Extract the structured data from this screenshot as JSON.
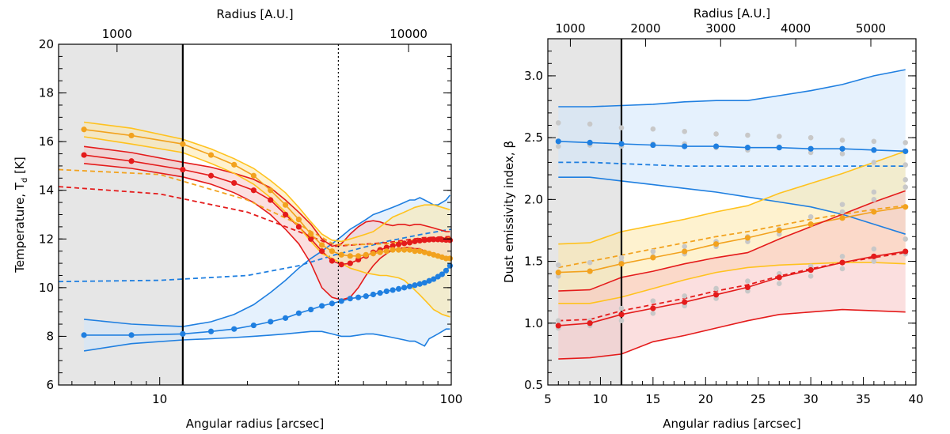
{
  "colors": {
    "blue": "#1f7fe0",
    "blue_fill": "#cfe6fb",
    "red": "#e41b1b",
    "red_fill": "#f8c4c4",
    "orange": "#f2a21e",
    "orange_band": "#ffc21e",
    "orange_fill": "#fde7a8",
    "gray_region": "#e6e6e6",
    "gray_point": "#c8c8c8"
  },
  "chart_data": [
    {
      "type": "line",
      "xscale": "log",
      "xlim": [
        4.5,
        100
      ],
      "ylim": [
        6,
        20
      ],
      "xlabel": "Angular radius [arcsec]",
      "ylabel": "Temperature, T",
      "ylabel_sub": "d",
      "ylabel_unit": " [K]",
      "top_axis_label": "Radius [A.U.]",
      "x_ticks": [
        10,
        100
      ],
      "x_tick_labels": [
        "10",
        "100"
      ],
      "y_ticks": [
        6,
        8,
        10,
        12,
        14,
        16,
        18,
        20
      ],
      "y_tick_labels": [
        "6",
        "8",
        "10",
        "12",
        "14",
        "16",
        "18",
        "20"
      ],
      "top_ticks": [
        7.14,
        71.4
      ],
      "top_tick_labels": [
        "1000",
        "10000"
      ],
      "shaded_region_x": [
        4.5,
        12
      ],
      "vline_solid_x": 12,
      "vline_dotted_x": 41,
      "series": [
        {
          "name": "blue",
          "color_key": "blue",
          "x": [
            5.5,
            8,
            12,
            15,
            18,
            21,
            24,
            27,
            30,
            33,
            36,
            39,
            42,
            45,
            48,
            51,
            54,
            57,
            60,
            63,
            66,
            69,
            72,
            75,
            78,
            81,
            84,
            87,
            90,
            93,
            96,
            99
          ],
          "y": [
            8.05,
            8.05,
            8.1,
            8.2,
            8.3,
            8.45,
            8.6,
            8.75,
            8.95,
            9.1,
            9.25,
            9.35,
            9.45,
            9.55,
            9.6,
            9.65,
            9.72,
            9.78,
            9.85,
            9.9,
            9.95,
            10.0,
            10.05,
            10.1,
            10.15,
            10.2,
            10.28,
            10.35,
            10.45,
            10.55,
            10.7,
            10.9
          ],
          "band_upper": [
            8.7,
            8.5,
            8.4,
            8.6,
            8.9,
            9.3,
            9.8,
            10.3,
            10.8,
            11.2,
            11.5,
            11.8,
            12.1,
            12.4,
            12.6,
            12.8,
            13.0,
            13.1,
            13.2,
            13.3,
            13.4,
            13.5,
            13.6,
            13.6,
            13.7,
            13.6,
            13.5,
            13.4,
            13.4,
            13.5,
            13.6,
            13.8
          ],
          "band_lower": [
            7.4,
            7.7,
            7.85,
            7.9,
            7.95,
            8.0,
            8.05,
            8.1,
            8.15,
            8.2,
            8.2,
            8.1,
            8.0,
            8.0,
            8.05,
            8.1,
            8.1,
            8.05,
            8.0,
            7.95,
            7.9,
            7.85,
            7.8,
            7.8,
            7.7,
            7.6,
            7.9,
            8.0,
            8.1,
            8.2,
            8.3,
            8.3
          ],
          "dashed_x": [
            4.5,
            10,
            20,
            30,
            40,
            60,
            80,
            100
          ],
          "dashed_y": [
            10.25,
            10.3,
            10.5,
            10.9,
            11.35,
            11.9,
            12.2,
            12.4
          ]
        },
        {
          "name": "red",
          "color_key": "red",
          "x": [
            5.5,
            8,
            12,
            15,
            18,
            21,
            24,
            27,
            30,
            33,
            36,
            39,
            42,
            45,
            48,
            51,
            54,
            57,
            60,
            63,
            66,
            69,
            72,
            75,
            78,
            81,
            84,
            87,
            90,
            93,
            96,
            99
          ],
          "y": [
            15.45,
            15.2,
            14.85,
            14.6,
            14.3,
            14.0,
            13.6,
            13.0,
            12.5,
            12.0,
            11.5,
            11.1,
            10.95,
            11.0,
            11.15,
            11.3,
            11.45,
            11.55,
            11.65,
            11.72,
            11.78,
            11.82,
            11.85,
            11.9,
            11.93,
            11.95,
            11.97,
            11.98,
            11.98,
            11.97,
            11.96,
            11.95
          ],
          "band_upper": [
            15.8,
            15.55,
            15.15,
            14.95,
            14.7,
            14.45,
            14.1,
            13.6,
            13.1,
            12.6,
            12.0,
            11.7,
            11.8,
            12.2,
            12.5,
            12.7,
            12.75,
            12.7,
            12.6,
            12.55,
            12.6,
            12.6,
            12.55,
            12.6,
            12.6,
            12.55,
            12.5,
            12.45,
            12.4,
            12.35,
            12.3,
            12.3
          ],
          "band_lower": [
            15.1,
            14.9,
            14.55,
            14.25,
            13.9,
            13.5,
            13.0,
            12.4,
            11.8,
            11.0,
            10.0,
            9.6,
            9.5,
            9.6,
            10.0,
            10.5,
            10.9,
            11.2,
            11.4,
            11.55,
            11.6,
            11.65,
            11.65,
            11.6,
            11.6,
            11.5,
            11.45,
            11.4,
            11.35,
            11.3,
            11.25,
            11.2
          ],
          "dashed_x": [
            4.5,
            10,
            20,
            30,
            40,
            60,
            80,
            100
          ],
          "dashed_y": [
            14.15,
            13.85,
            13.1,
            12.3,
            11.7,
            11.85,
            12.05,
            12.1
          ]
        },
        {
          "name": "orange",
          "color_key": "orange",
          "x": [
            5.5,
            8,
            12,
            15,
            18,
            21,
            24,
            27,
            30,
            33,
            36,
            39,
            42,
            45,
            48,
            51,
            54,
            57,
            60,
            63,
            66,
            69,
            72,
            75,
            78,
            81,
            84,
            87,
            90,
            93,
            96,
            99
          ],
          "y": [
            16.5,
            16.25,
            15.9,
            15.45,
            15.05,
            14.6,
            14.0,
            13.4,
            12.8,
            12.2,
            11.75,
            11.5,
            11.35,
            11.3,
            11.3,
            11.35,
            11.4,
            11.45,
            11.5,
            11.55,
            11.55,
            11.55,
            11.55,
            11.5,
            11.5,
            11.45,
            11.4,
            11.35,
            11.3,
            11.25,
            11.2,
            11.2
          ],
          "band_upper": [
            16.8,
            16.55,
            16.1,
            15.7,
            15.3,
            14.9,
            14.4,
            13.9,
            13.3,
            12.7,
            12.2,
            11.95,
            11.9,
            12.0,
            12.1,
            12.2,
            12.3,
            12.5,
            12.7,
            12.9,
            13.0,
            13.1,
            13.2,
            13.3,
            13.35,
            13.4,
            13.4,
            13.4,
            13.35,
            13.3,
            13.25,
            13.2
          ],
          "band_lower": [
            16.2,
            15.9,
            15.55,
            15.1,
            14.7,
            14.25,
            13.7,
            13.1,
            12.5,
            11.9,
            11.4,
            11.2,
            11.0,
            10.8,
            10.7,
            10.6,
            10.55,
            10.5,
            10.5,
            10.45,
            10.4,
            10.3,
            10.1,
            9.9,
            9.7,
            9.5,
            9.3,
            9.1,
            9.0,
            8.9,
            8.85,
            8.8
          ],
          "dashed_x": [
            4.5,
            10,
            20,
            30,
            40,
            60,
            80,
            100
          ],
          "dashed_y": [
            14.85,
            14.65,
            13.6,
            12.6,
            11.75,
            11.8,
            12.0,
            12.05
          ]
        }
      ]
    },
    {
      "type": "line",
      "xscale": "linear",
      "xlim": [
        5,
        40
      ],
      "ylim": [
        0.5,
        3.3
      ],
      "xlabel": "Angular radius [arcsec]",
      "ylabel": "Dust emissivity index, β",
      "top_axis_label": "Radius [A.U.]",
      "x_ticks": [
        5,
        10,
        15,
        20,
        25,
        30,
        35,
        40
      ],
      "x_tick_labels": [
        "5",
        "10",
        "15",
        "20",
        "25",
        "30",
        "35",
        "40"
      ],
      "y_ticks": [
        0.5,
        1.0,
        1.5,
        2.0,
        2.5,
        3.0
      ],
      "y_tick_labels": [
        "0.5",
        "1.0",
        "1.5",
        "2.0",
        "2.5",
        "3.0"
      ],
      "top_ticks": [
        7.14,
        14.29,
        21.43,
        28.57,
        35.71
      ],
      "top_tick_labels": [
        "1000",
        "2000",
        "3000",
        "4000",
        "5000"
      ],
      "shaded_region_x": [
        5,
        12
      ],
      "vline_solid_x": 12,
      "gray_points": {
        "x": [
          6,
          9,
          12,
          15,
          18,
          21,
          24,
          27,
          30,
          33,
          36,
          39
        ],
        "y_sets": [
          [
            2.62,
            2.61,
            2.58,
            2.57,
            2.55,
            2.53,
            2.52,
            2.51,
            2.5,
            2.48,
            2.47,
            2.46
          ],
          [
            2.43,
            2.44,
            2.43,
            2.45,
            2.45,
            2.42,
            2.4,
            2.42,
            2.38,
            2.37,
            2.3,
            2.28
          ],
          [
            1.47,
            1.49,
            1.53,
            1.58,
            1.62,
            1.66,
            1.7,
            1.76,
            1.86,
            1.96,
            2.06,
            2.16
          ],
          [
            1.38,
            1.42,
            1.5,
            1.54,
            1.56,
            1.62,
            1.66,
            1.72,
            1.8,
            1.9,
            2.0,
            2.1
          ],
          [
            1.02,
            1.02,
            1.12,
            1.18,
            1.22,
            1.28,
            1.34,
            1.4,
            1.46,
            1.54,
            1.6,
            1.68
          ],
          [
            0.96,
            0.98,
            1.02,
            1.08,
            1.14,
            1.2,
            1.26,
            1.32,
            1.38,
            1.44,
            1.5,
            1.56
          ]
        ]
      },
      "series": [
        {
          "name": "blue",
          "color_key": "blue",
          "x": [
            6,
            9,
            12,
            15,
            18,
            21,
            24,
            27,
            30,
            33,
            36,
            39
          ],
          "y": [
            2.47,
            2.46,
            2.45,
            2.44,
            2.43,
            2.43,
            2.42,
            2.42,
            2.41,
            2.41,
            2.4,
            2.39
          ],
          "band_upper": [
            2.75,
            2.75,
            2.76,
            2.77,
            2.79,
            2.8,
            2.8,
            2.84,
            2.88,
            2.93,
            3.0,
            3.05
          ],
          "band_lower": [
            2.18,
            2.18,
            2.15,
            2.12,
            2.09,
            2.06,
            2.02,
            1.98,
            1.94,
            1.88,
            1.8,
            1.72
          ],
          "dashed_x": [
            6,
            9,
            12,
            15,
            18,
            21,
            24,
            27,
            30,
            33,
            36,
            39
          ],
          "dashed_y": [
            2.3,
            2.3,
            2.29,
            2.28,
            2.27,
            2.27,
            2.27,
            2.27,
            2.27,
            2.27,
            2.27,
            2.27
          ]
        },
        {
          "name": "orange",
          "color_key": "orange",
          "x": [
            6,
            9,
            12,
            15,
            18,
            21,
            24,
            27,
            30,
            33,
            36,
            39
          ],
          "y": [
            1.41,
            1.42,
            1.48,
            1.53,
            1.58,
            1.64,
            1.69,
            1.75,
            1.8,
            1.85,
            1.9,
            1.94
          ],
          "band_upper": [
            1.64,
            1.65,
            1.74,
            1.79,
            1.84,
            1.9,
            1.95,
            2.05,
            2.13,
            2.21,
            2.3,
            2.39
          ],
          "band_lower": [
            1.16,
            1.16,
            1.21,
            1.28,
            1.35,
            1.41,
            1.45,
            1.47,
            1.48,
            1.49,
            1.49,
            1.48
          ],
          "dashed_x": [
            6,
            9,
            12,
            15,
            18,
            21,
            24,
            27,
            30,
            33,
            36,
            39
          ],
          "dashed_y": [
            1.45,
            1.5,
            1.55,
            1.6,
            1.65,
            1.7,
            1.74,
            1.79,
            1.84,
            1.88,
            1.92,
            1.95
          ]
        },
        {
          "name": "red",
          "color_key": "red",
          "x": [
            6,
            9,
            12,
            15,
            18,
            21,
            24,
            27,
            30,
            33,
            36,
            39
          ],
          "y": [
            0.98,
            1.0,
            1.07,
            1.12,
            1.17,
            1.23,
            1.29,
            1.37,
            1.43,
            1.49,
            1.54,
            1.58
          ],
          "band_upper": [
            1.26,
            1.27,
            1.37,
            1.42,
            1.48,
            1.53,
            1.57,
            1.68,
            1.78,
            1.88,
            1.98,
            2.07
          ],
          "band_lower": [
            0.71,
            0.72,
            0.75,
            0.85,
            0.9,
            0.96,
            1.02,
            1.07,
            1.09,
            1.11,
            1.1,
            1.09
          ],
          "dashed_x": [
            6,
            9,
            12,
            15,
            18,
            21,
            24,
            27,
            30,
            33,
            36,
            39
          ],
          "dashed_y": [
            1.02,
            1.03,
            1.1,
            1.15,
            1.2,
            1.26,
            1.31,
            1.38,
            1.44,
            1.49,
            1.53,
            1.57
          ]
        }
      ]
    }
  ]
}
